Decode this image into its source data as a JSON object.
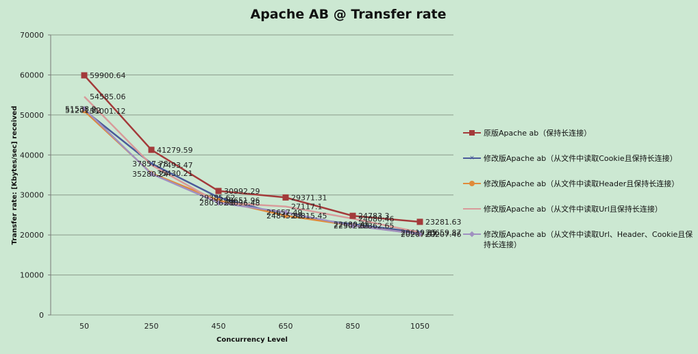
{
  "chart_data": {
    "type": "line",
    "title": "Apache AB @ Transfer rate",
    "xlabel": "Concurrency Level",
    "ylabel": "Transfer rate:   [Kbytes/sec] received",
    "categories": [
      "50",
      "250",
      "450",
      "650",
      "850",
      "1050"
    ],
    "ylim": [
      0,
      70000
    ],
    "yticks": [
      "0",
      "10000",
      "20000",
      "30000",
      "40000",
      "50000",
      "60000",
      "70000"
    ],
    "grid": true,
    "legend_position": "right",
    "series": [
      {
        "name": "原版Apache ab（保持长连接）",
        "color": "#a33a3a",
        "marker": "square",
        "values": [
          59900.64,
          41279.59,
          30992.29,
          29371.31,
          24783.3,
          23281.63
        ],
        "labels": [
          "59900.64",
          "41279.59",
          "30992.29",
          "29371.31",
          "24783.3",
          "23281.63"
        ]
      },
      {
        "name": "修改版Apache ab（从文件中读取Cookie且保持长连接）",
        "color": "#4a5a9a",
        "marker": "x",
        "values": [
          51201.82,
          37857.78,
          29385.62,
          24845.83,
          22680.45,
          20619.35
        ],
        "labels": [
          "51201.82",
          "37857.78",
          "29385.62",
          "24845.83",
          "22680.45",
          "20619.35"
        ]
      },
      {
        "name": "修改版Apache ab（从文件中读取Header且保持长连接）",
        "color": "#e08a3a",
        "marker": "circle",
        "values": [
          51001.12,
          35430.21,
          28651.96,
          24815.45,
          22362.65,
          20207.46
        ],
        "labels": [
          "51001.12",
          "35430.21",
          "28651.96",
          "24815.45",
          "22362.65",
          "20207.46"
        ]
      },
      {
        "name": "修改版Apache ab（从文件中读取Url且保持长连接）",
        "color": "#d89a9a",
        "marker": "none",
        "values": [
          54585.06,
          37493.47,
          28096.48,
          27117.1,
          24080.46,
          20659.87
        ],
        "labels": [
          "54585.06",
          "37493.47",
          "28096.48",
          "27117.1",
          "24080.46",
          "20659.87"
        ]
      },
      {
        "name": "修改版Apache ab（从文件中读取Url、Header、Cookie且保持长连接）",
        "color": "#a090c0",
        "marker": "diamond",
        "values": [
          51538.9,
          35280.24,
          28036.78,
          25657.49,
          22302.05,
          20207.97
        ],
        "labels": [
          "51538.9",
          "35280.24",
          "28036.78",
          "25657.49",
          "22302.05",
          "20207.97"
        ]
      }
    ]
  },
  "legend": {
    "items": [
      "原版Apache ab（保持长连接）",
      "修改版Apache ab（从文件中读取Cookie且保持长连接）",
      "修改版Apache ab（从文件中读取Header且保持长连接）",
      "修改版Apache ab（从文件中读取Url且保持长连接）",
      "修改版Apache ab（从文件中读取Url、Header、Cookie且保持长连接）"
    ]
  }
}
